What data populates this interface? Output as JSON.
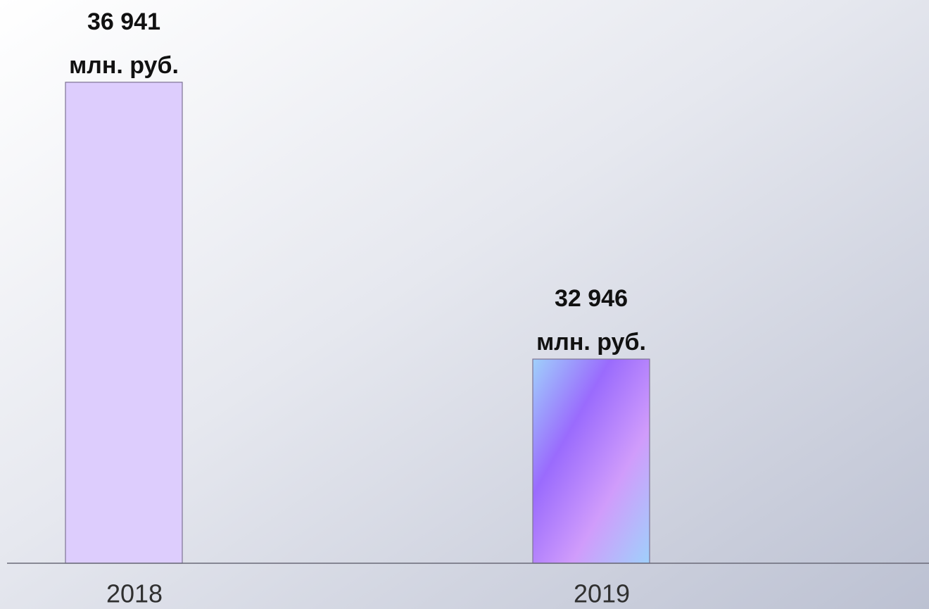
{
  "chart_data": {
    "type": "bar",
    "categories": [
      "2018",
      "2019"
    ],
    "values": [
      36941,
      32946
    ],
    "value_labels": [
      [
        "36 941",
        "млн. руб."
      ],
      [
        "32 946",
        "млн. руб."
      ]
    ],
    "fills": [
      [
        "#ddcdfd"
      ],
      [
        "#9fd0fb",
        "#9a6bfd",
        "#d09cfb",
        "#9fd0fb"
      ]
    ],
    "ylim": [
      30000,
      37000
    ]
  }
}
